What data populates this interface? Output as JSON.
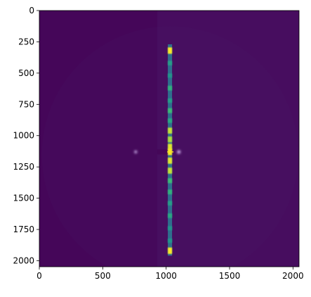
{
  "chart_data": {
    "type": "heatmap",
    "title": "",
    "xlabel": "",
    "ylabel": "",
    "colormap": "viridis",
    "image_size": [
      2048,
      2048
    ],
    "xlim": [
      0,
      2048
    ],
    "ylim": [
      2048,
      0
    ],
    "x_ticks": [
      0,
      500,
      1000,
      1500,
      2000
    ],
    "y_ticks": [
      0,
      250,
      500,
      750,
      1000,
      1250,
      1500,
      1750,
      2000
    ],
    "x_tick_labels": [
      "0",
      "500",
      "1000",
      "1500",
      "2000"
    ],
    "y_tick_labels": [
      "0",
      "250",
      "500",
      "750",
      "1000",
      "1250",
      "1500",
      "1750",
      "2000"
    ],
    "background_value": 0.02,
    "beam_center": [
      1030,
      1130
    ],
    "meridian": {
      "x": 1030,
      "y_range": [
        270,
        1960
      ],
      "peaks": [
        {
          "y": 320,
          "intensity": 1.0
        },
        {
          "y": 420,
          "intensity": 0.45
        },
        {
          "y": 520,
          "intensity": 0.4
        },
        {
          "y": 620,
          "intensity": 0.55
        },
        {
          "y": 720,
          "intensity": 0.45
        },
        {
          "y": 800,
          "intensity": 0.6
        },
        {
          "y": 880,
          "intensity": 0.5
        },
        {
          "y": 960,
          "intensity": 0.9
        },
        {
          "y": 1030,
          "intensity": 0.85
        },
        {
          "y": 1090,
          "intensity": 0.95
        },
        {
          "y": 1130,
          "intensity": 1.0
        },
        {
          "y": 1200,
          "intensity": 0.95
        },
        {
          "y": 1280,
          "intensity": 0.9
        },
        {
          "y": 1360,
          "intensity": 0.6
        },
        {
          "y": 1450,
          "intensity": 0.55
        },
        {
          "y": 1540,
          "intensity": 0.45
        },
        {
          "y": 1640,
          "intensity": 0.5
        },
        {
          "y": 1740,
          "intensity": 0.4
        },
        {
          "y": 1840,
          "intensity": 0.4
        },
        {
          "y": 1920,
          "intensity": 1.0
        }
      ]
    },
    "layer_lines": [
      320,
      420,
      520,
      620,
      720,
      800,
      880,
      960,
      1030,
      1200,
      1280,
      1360,
      1450,
      1540,
      1640,
      1740,
      1840,
      1920
    ],
    "off_axis_spots": [
      {
        "x": 1100,
        "y": 1130,
        "intensity": 0.7
      },
      {
        "x": 760,
        "y": 1130,
        "intensity": 0.5
      }
    ]
  }
}
